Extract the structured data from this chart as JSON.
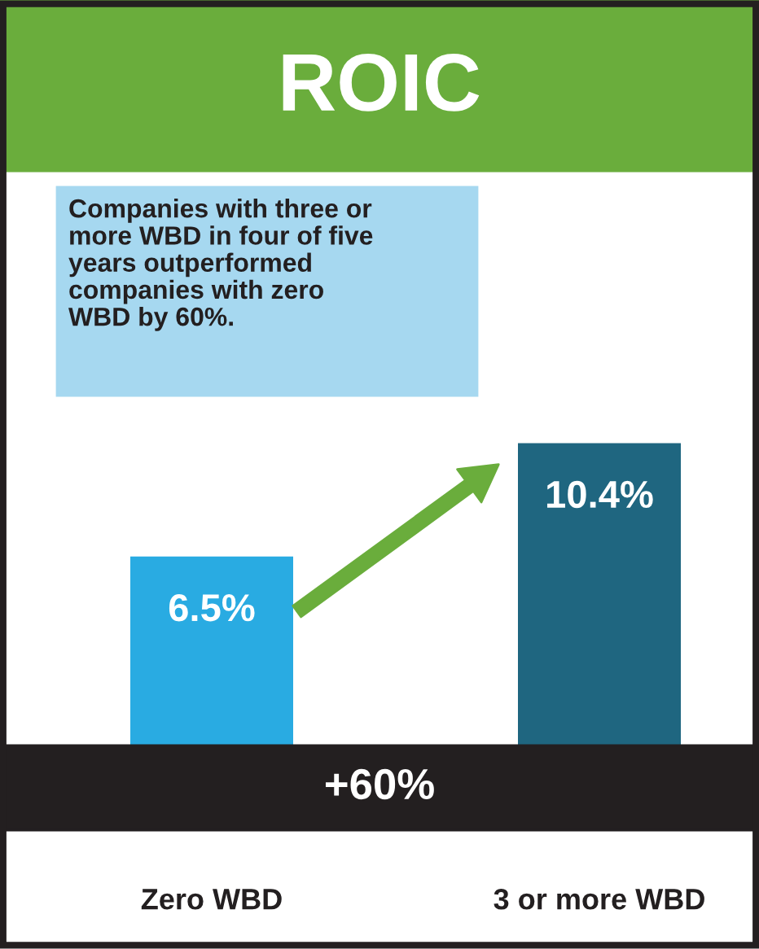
{
  "chart_data": {
    "type": "bar",
    "title": "ROIC",
    "categories": [
      "Zero WBD",
      "3 or more WBD"
    ],
    "values": [
      6.5,
      10.4
    ],
    "colors": [
      "#29abe2",
      "#1f6680"
    ],
    "value_labels": [
      "6.5%",
      "10.4%"
    ],
    "grid": false,
    "legend": false,
    "annotations": [
      "Companies with three or\nmore WBD in four of five\nyears outperformed\ncompanies with zero\nWBD by 60%.",
      "+60%"
    ]
  }
}
